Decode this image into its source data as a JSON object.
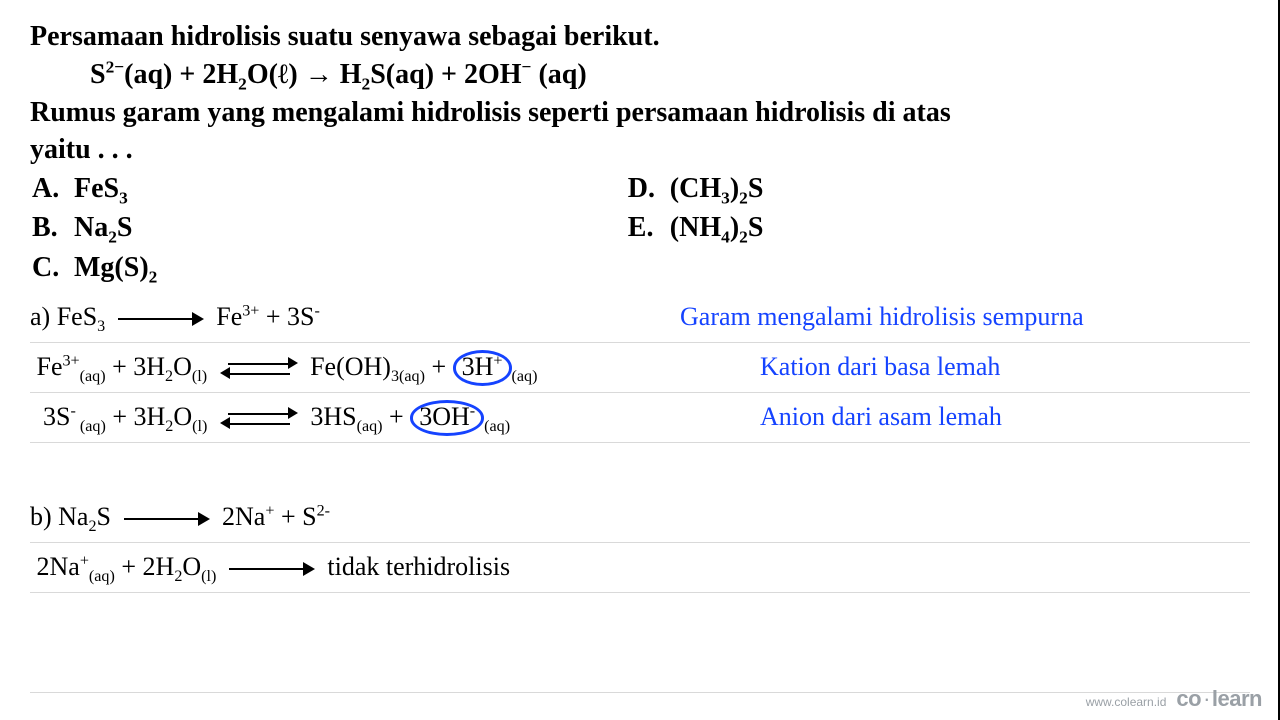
{
  "question": {
    "line1": "Persamaan hidrolisis suatu senyawa sebagai berikut.",
    "line3": "Rumus garam yang mengalami hidrolisis seperti persamaan hidrolisis di atas",
    "line4": "yaitu . . ."
  },
  "equation": {
    "lhs1": "S",
    "lhs1_super": "2−",
    "lhs1_state": "(aq)",
    "plus1": " + 2H",
    "h2o_sub": "2",
    "h2o_o": "O(ℓ)",
    "arrow": " → ",
    "rhs1": "H",
    "h2s_sub": "2",
    "rhs1b": "S(aq) + 2OH",
    "oh_super": "−",
    "rhs_state": " (aq)"
  },
  "options": {
    "A": {
      "label": "A.",
      "text_pre": "FeS",
      "sub": "3"
    },
    "B": {
      "label": "B.",
      "text_pre": "Na",
      "sub": "2",
      "text_post": "S"
    },
    "C": {
      "label": "C.",
      "text_pre": "Mg(S)",
      "sub": "2"
    },
    "D": {
      "label": "D.",
      "text_pre": "(CH",
      "sub1": "3",
      "mid": ")",
      "sub2": "2",
      "text_post": "S"
    },
    "E": {
      "label": "E.",
      "text_pre": "(NH",
      "sub1": "4",
      "mid": ")",
      "sub2": "2",
      "text_post": "S"
    }
  },
  "work": {
    "a": {
      "l1_a": "a) FeS",
      "l1_sub": "3",
      "l1_b": "Fe",
      "l1_sup": "3+",
      "l1_c": " + 3S",
      "l1_sup2": "-",
      "note1": "Garam mengalami hidrolisis sempurna",
      "l2_a": "Fe",
      "l2_sup": "3+",
      "l2_aq": "(aq)",
      "l2_b": " + 3H",
      "l2_sub": "2",
      "l2_c": "O",
      "l2_l": "(l)",
      "l2_d": "Fe(OH)",
      "l2_sub2": "3(aq)",
      "l2_e": " +",
      "l2_circ": "3H",
      "l2_circ_sup": "+",
      "l2_f": "(aq)",
      "note2": "Kation dari basa lemah",
      "l3_a": "3S",
      "l3_sup": "-",
      "l3_aq": " (aq)",
      "l3_b": " + 3H",
      "l3_sub": "2",
      "l3_c": "O",
      "l3_l": "(l)",
      "l3_d": "3HS",
      "l3_aq2": "(aq)",
      "l3_e": " +",
      "l3_circ": "3OH",
      "l3_circ_sup": "-",
      "l3_f": "(aq)",
      "note3": "Anion dari asam lemah"
    },
    "b": {
      "l1_a": "b) Na",
      "l1_sub": "2",
      "l1_b": "S",
      "l1_c": "2Na",
      "l1_sup": "+",
      "l1_d": " + S",
      "l1_sup2": "2-",
      "l2_a": "2Na",
      "l2_sup": "+",
      "l2_aq": "(aq)",
      "l2_b": " + 2H",
      "l2_sub": "2",
      "l2_c": "O",
      "l2_l": "(l)",
      "l2_d": "tidak terhidrolisis"
    }
  },
  "footer": {
    "url": "www.colearn.id",
    "brand_a": "co",
    "brand_dot": "·",
    "brand_b": "learn"
  },
  "colors": {
    "text": "#000000",
    "annotation": "#1543ff",
    "rule": "#d9d9d9",
    "footer": "#9aa0a6",
    "background": "#ffffff"
  }
}
